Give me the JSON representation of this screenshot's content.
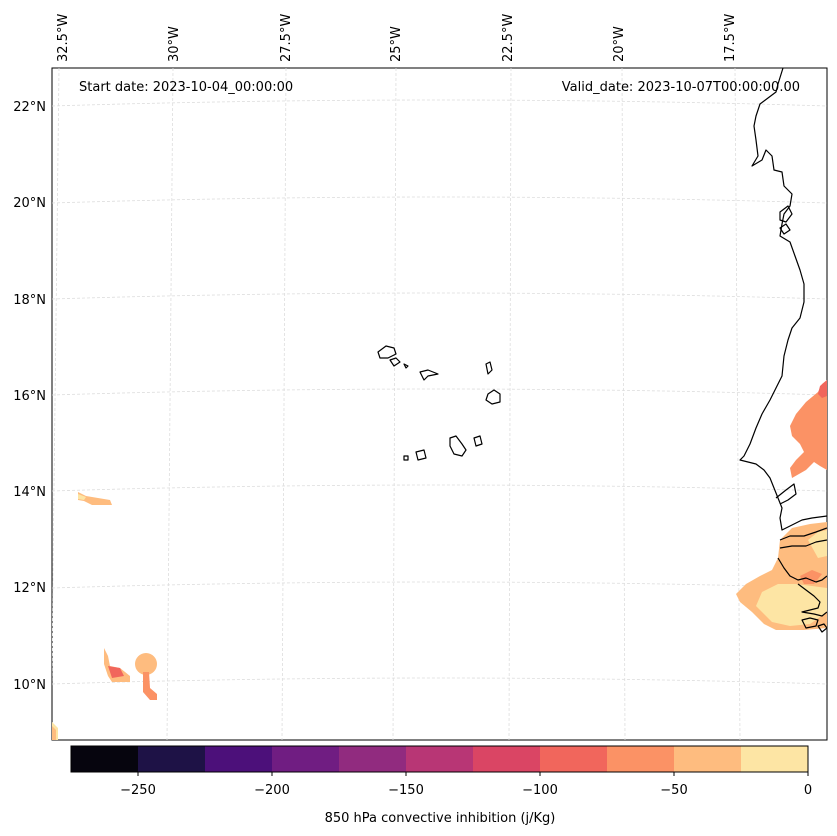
{
  "map": {
    "start_label": "Start date: 2023-10-04_00:00:00",
    "valid_label": "Valid_date: 2023-10-07T00:00:00.00",
    "lon_labels": [
      "32.5°W",
      "30°W",
      "27.5°W",
      "25°W",
      "22.5°W",
      "20°W",
      "17.5°W"
    ],
    "lat_labels": [
      "22°N",
      "20°N",
      "18°N",
      "16°N",
      "14°N",
      "12°N",
      "10°N"
    ],
    "gridline_color": "#dddddd",
    "coastline_color": "#000000"
  },
  "colorbar": {
    "label": "850 hPa convective inhibition (j/Kg)",
    "ticks": [
      "−250",
      "−200",
      "−150",
      "−100",
      "−50",
      "0"
    ],
    "range": [
      -275,
      0
    ],
    "levels": [
      -275,
      -250,
      -225,
      -200,
      -175,
      -150,
      -125,
      -100,
      -75,
      -50,
      -25,
      0
    ],
    "colors": [
      "#06050e",
      "#1e1246",
      "#4c107a",
      "#701d82",
      "#912b7f",
      "#b83675",
      "#da4564",
      "#f1665c",
      "#fb9265",
      "#febc7f",
      "#fde5a4"
    ]
  }
}
